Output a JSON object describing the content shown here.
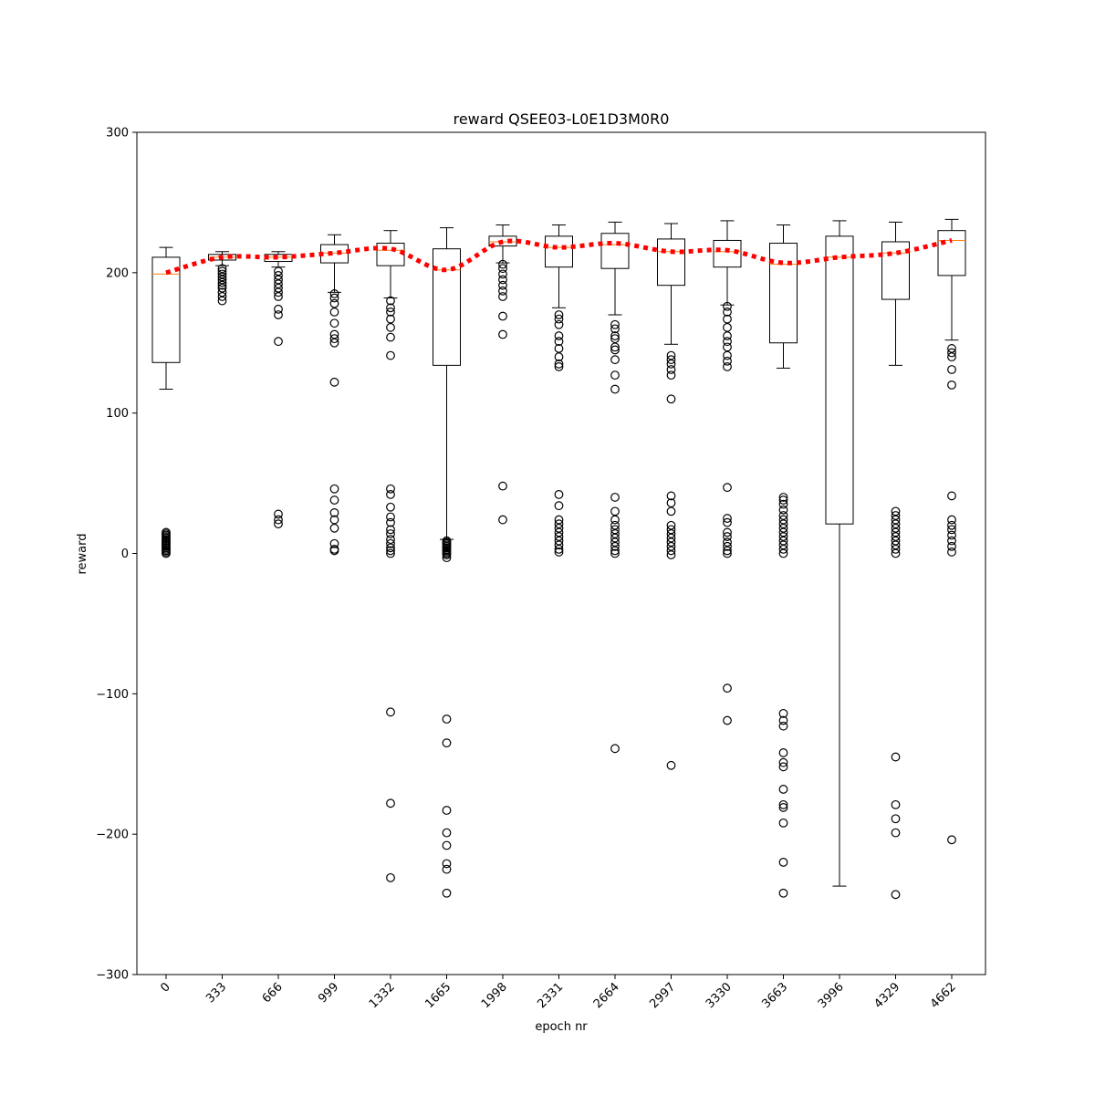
{
  "chart_data": {
    "type": "box",
    "title": "reward QSEE03-L0E1D3M0R0",
    "xlabel": "epoch nr",
    "ylabel": "reward",
    "ylim": [
      -300,
      300
    ],
    "yticks": [
      -300,
      -200,
      -100,
      0,
      100,
      200,
      300
    ],
    "categories": [
      "0",
      "333",
      "666",
      "999",
      "1332",
      "1665",
      "1998",
      "2331",
      "2664",
      "2997",
      "3330",
      "3663",
      "3996",
      "4329",
      "4662"
    ],
    "boxes": [
      {
        "whislo": 117,
        "q1": 136,
        "med": 199,
        "q3": 211,
        "whishi": 218,
        "fliers": [
          0,
          1,
          2,
          3,
          4,
          5,
          6,
          7,
          8,
          9,
          10,
          11,
          12,
          13,
          14,
          15
        ]
      },
      {
        "whislo": 205,
        "q1": 209,
        "med": 211,
        "q3": 213,
        "whishi": 215,
        "fliers": [
          180,
          183,
          186,
          189,
          191,
          193,
          195,
          197,
          199,
          201,
          203
        ]
      },
      {
        "whislo": 204,
        "q1": 208,
        "med": 211,
        "q3": 213,
        "whishi": 215,
        "fliers": [
          21,
          24,
          28,
          151,
          170,
          174,
          183,
          186,
          189,
          192,
          195,
          198,
          201
        ]
      },
      {
        "whislo": 186,
        "q1": 207,
        "med": 214,
        "q3": 220,
        "whishi": 227,
        "fliers": [
          2,
          3,
          7,
          18,
          24,
          29,
          38,
          46,
          122,
          150,
          153,
          156,
          164,
          172,
          178,
          182,
          185
        ]
      },
      {
        "whislo": 182,
        "q1": 205,
        "med": 216,
        "q3": 221,
        "whishi": 230,
        "fliers": [
          -231,
          -178,
          -113,
          0,
          2,
          4,
          7,
          10,
          14,
          17,
          22,
          26,
          33,
          42,
          46,
          141,
          154,
          161,
          167,
          172,
          175,
          180
        ]
      },
      {
        "whislo": 10,
        "q1": 134,
        "med": 202,
        "q3": 217,
        "whishi": 232,
        "fliers": [
          -242,
          -225,
          -221,
          -208,
          -199,
          -183,
          -135,
          -118,
          -3,
          -1,
          0,
          1,
          2,
          3,
          4,
          5,
          6,
          7,
          8,
          9
        ]
      },
      {
        "whislo": 207,
        "q1": 219,
        "med": 222,
        "q3": 226,
        "whishi": 234,
        "fliers": [
          24,
          48,
          156,
          169,
          183,
          187,
          191,
          195,
          199,
          203,
          206
        ]
      },
      {
        "whislo": 175,
        "q1": 204,
        "med": 218,
        "q3": 226,
        "whishi": 234,
        "fliers": [
          1,
          3,
          6,
          9,
          12,
          15,
          18,
          21,
          24,
          34,
          42,
          133,
          135,
          140,
          146,
          151,
          155,
          163,
          167,
          170
        ]
      },
      {
        "whislo": 170,
        "q1": 203,
        "med": 220,
        "q3": 228,
        "whishi": 236,
        "fliers": [
          -139,
          0,
          2,
          5,
          8,
          11,
          14,
          17,
          20,
          24,
          30,
          40,
          117,
          127,
          138,
          145,
          147,
          153,
          155,
          160,
          163
        ]
      },
      {
        "whislo": 149,
        "q1": 191,
        "med": 215,
        "q3": 224,
        "whishi": 235,
        "fliers": [
          -151,
          -1,
          2,
          5,
          8,
          11,
          14,
          17,
          20,
          30,
          36,
          41,
          110,
          127,
          131,
          135,
          138,
          141
        ]
      },
      {
        "whislo": 177,
        "q1": 204,
        "med": 215,
        "q3": 223,
        "whishi": 237,
        "fliers": [
          -119,
          -96,
          0,
          2,
          5,
          8,
          12,
          15,
          22,
          25,
          47,
          133,
          137,
          141,
          147,
          151,
          155,
          161,
          167,
          172,
          176
        ]
      },
      {
        "whislo": 132,
        "q1": 150,
        "med": 206,
        "q3": 221,
        "whishi": 234,
        "fliers": [
          -242,
          -220,
          -192,
          -181,
          -179,
          -168,
          -152,
          -149,
          -142,
          -123,
          -119,
          -114,
          0,
          3,
          6,
          9,
          12,
          15,
          18,
          21,
          24,
          27,
          31,
          35,
          38,
          40
        ]
      },
      {
        "whislo": -237,
        "q1": 21,
        "med": 211,
        "q3": 226,
        "whishi": 237,
        "fliers": []
      },
      {
        "whislo": 134,
        "q1": 181,
        "med": 214,
        "q3": 222,
        "whishi": 236,
        "fliers": [
          -243,
          -199,
          -189,
          -179,
          -145,
          0,
          3,
          6,
          9,
          12,
          15,
          18,
          21,
          24,
          27,
          30
        ]
      },
      {
        "whislo": 152,
        "q1": 198,
        "med": 223,
        "q3": 230,
        "whishi": 238,
        "fliers": [
          -204,
          1,
          5,
          9,
          13,
          17,
          20,
          24,
          41,
          120,
          131,
          140,
          143,
          146
        ]
      }
    ],
    "mean_line": {
      "style": "dotted",
      "color": "#ff0000",
      "values": [
        200,
        211,
        211,
        214,
        217,
        202,
        222,
        218,
        221,
        215,
        216,
        207,
        211,
        214,
        223
      ]
    },
    "median_color": "#ff7f0e",
    "box_color": "#000000",
    "grid": false
  }
}
